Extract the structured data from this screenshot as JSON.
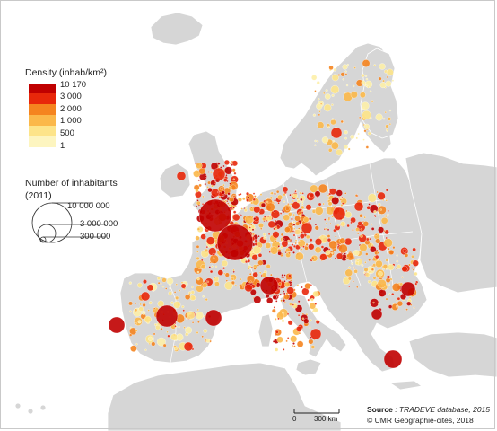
{
  "legend": {
    "density_title": "Density (inhab/km²)",
    "density_classes": [
      {
        "label": "10 170",
        "color": "#c00000"
      },
      {
        "label": "3 000",
        "color": "#e8270a"
      },
      {
        "label": "2 000",
        "color": "#f5841f"
      },
      {
        "label": "1 000",
        "color": "#fbb84a"
      },
      {
        "label": "500",
        "color": "#fde48a"
      },
      {
        "label": "1",
        "color": null
      }
    ],
    "population_title_line1": "Number of inhabitants",
    "population_title_line2": "(2011)",
    "population_classes": [
      "10 000 000",
      "3 000 000",
      "300 000"
    ]
  },
  "source": {
    "label": "Source",
    "text": " : TRADEVE database, 2015",
    "copyright": "© UMR Géographie-cités, 2018"
  },
  "scale_bar": {
    "start": "0",
    "end": "300 km"
  },
  "colors": {
    "land": "#d4d4d4",
    "coast": "#ffffff",
    "sea": "#ffffff",
    "c1": "#fdf0a8",
    "c2": "#fde48a",
    "c3": "#fbb84a",
    "c4": "#f5841f",
    "c5": "#e8270a",
    "c6": "#c00000"
  }
}
